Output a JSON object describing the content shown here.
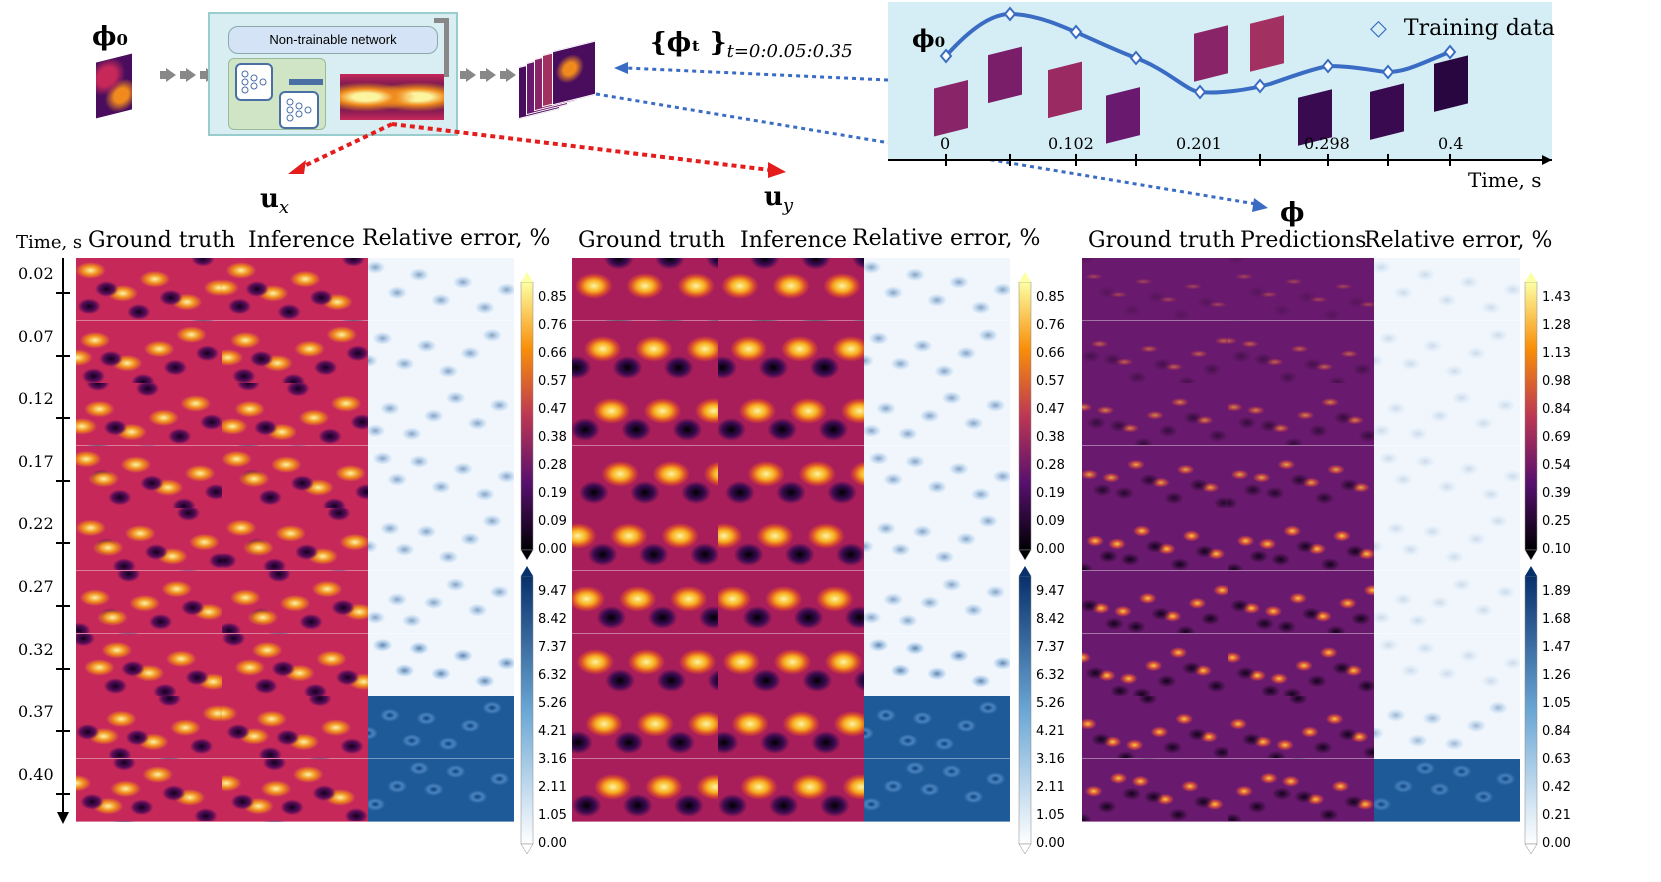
{
  "top": {
    "phi0_label": "ϕ₀",
    "network_label": "Non-trainable network",
    "phi_t_label": "{ϕₜ }",
    "phi_t_subscript": "t=0:0.05:0.35",
    "ux_label": "u",
    "ux_sub": "x",
    "uy_label": "u",
    "uy_sub": "y",
    "phi_label": "ϕ"
  },
  "training_plot": {
    "phi0_label": "ϕ₀",
    "legend": "Training data",
    "axis_label": "Time, s",
    "ticks": [
      "0",
      "0.102",
      "0.201",
      "0.298",
      "0.4"
    ]
  },
  "columns": {
    "ux": {
      "c1": "Ground truth",
      "c2": "Inference",
      "c3": "Relative error, %"
    },
    "uy": {
      "c1": "Ground truth",
      "c2": "Inference",
      "c3": "Relative error, %"
    },
    "phi": {
      "c1": "Ground truth",
      "c2": "Predictions",
      "c3": "Relative error, %"
    }
  },
  "time_axis": {
    "title": "Time, s",
    "labels": [
      "0.02",
      "0.07",
      "0.12",
      "0.17",
      "0.22",
      "0.27",
      "0.32",
      "0.37",
      "0.40"
    ]
  },
  "colorbars": {
    "ux_field": [
      "0.85",
      "0.76",
      "0.66",
      "0.57",
      "0.47",
      "0.38",
      "0.28",
      "0.19",
      "0.09",
      "0.00"
    ],
    "ux_error": [
      "9.47",
      "8.42",
      "7.37",
      "6.32",
      "5.26",
      "4.21",
      "3.16",
      "2.11",
      "1.05",
      "0.00"
    ],
    "uy_field": [
      "0.85",
      "0.76",
      "0.66",
      "0.57",
      "0.47",
      "0.38",
      "0.28",
      "0.19",
      "0.09",
      "0.00"
    ],
    "uy_error": [
      "9.47",
      "8.42",
      "7.37",
      "6.32",
      "5.26",
      "4.21",
      "3.16",
      "2.11",
      "1.05",
      "0.00"
    ],
    "phi_field": [
      "1.43",
      "1.28",
      "1.13",
      "0.98",
      "0.84",
      "0.69",
      "0.54",
      "0.39",
      "0.25",
      "0.10"
    ],
    "phi_error": [
      "1.89",
      "1.68",
      "1.47",
      "1.26",
      "1.05",
      "0.84",
      "0.63",
      "0.42",
      "0.21",
      "0.00"
    ]
  },
  "colors": {
    "inferno_dark": "#1a0533",
    "inferno_mid": "#c6285a",
    "inferno_orange": "#f08a1c",
    "inferno_yellow": "#fcf5a0",
    "blue_err": "#0b3d78",
    "arrow_red": "#e51c1c",
    "arrow_blue": "#3b6cc4",
    "training_bg": "#d5eef5"
  }
}
